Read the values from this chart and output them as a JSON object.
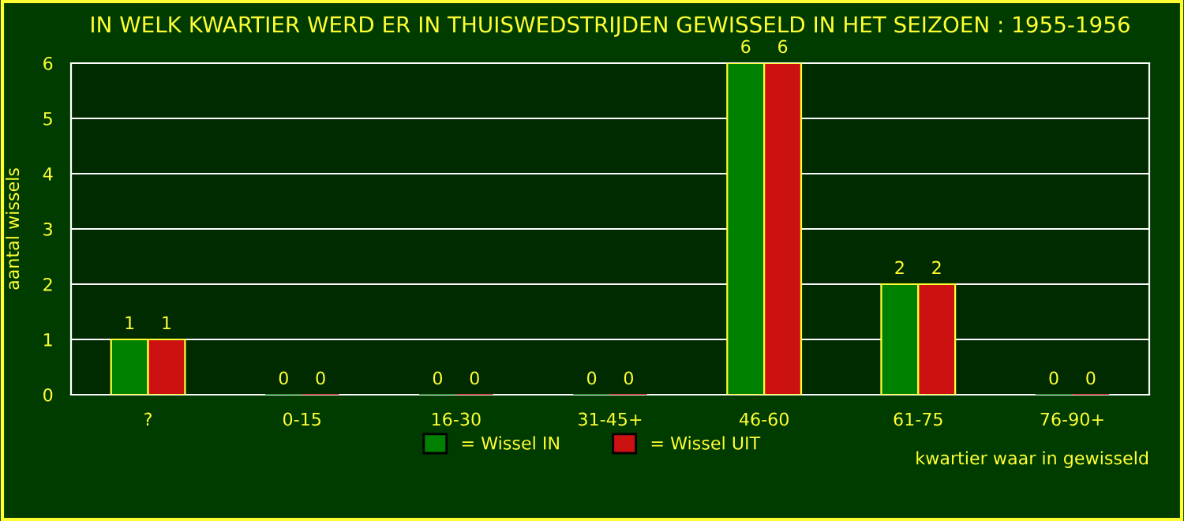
{
  "chart_data": {
    "type": "bar",
    "title": "IN WELK KWARTIER WERD ER IN THUISWEDSTRIJDEN GEWISSELD IN HET SEIZOEN : 1955-1956",
    "xlabel": "kwartier waar in gewisseld",
    "ylabel": "aantal wissels",
    "categories": [
      "?",
      "0-15",
      "16-30",
      "31-45+",
      "46-60",
      "61-75",
      "76-90+"
    ],
    "series": [
      {
        "name": "= Wissel IN",
        "color": "#008000",
        "values": [
          1,
          0,
          0,
          0,
          6,
          2,
          0
        ]
      },
      {
        "name": "= Wissel UIT",
        "color": "#cc1111",
        "values": [
          1,
          0,
          0,
          0,
          6,
          2,
          0
        ]
      }
    ],
    "ylim": [
      0,
      6
    ],
    "yticks": [
      0,
      1,
      2,
      3,
      4,
      5,
      6
    ],
    "grid": "y",
    "legend": "bottom",
    "data_labels": true
  }
}
